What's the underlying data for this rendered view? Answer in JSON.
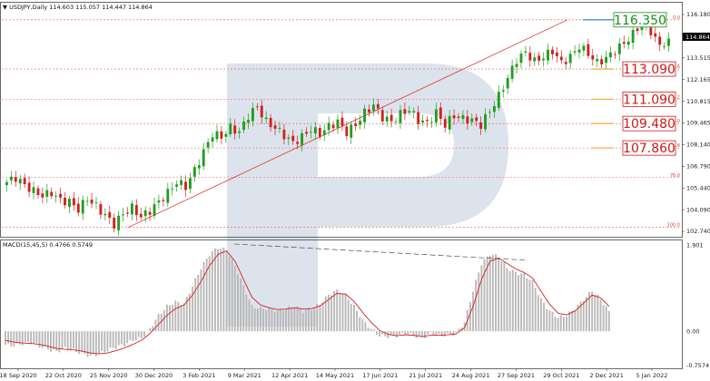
{
  "header": {
    "symbol_line": "▼ USDJPY,Daily  114.603 115.057 114.447 114.864",
    "macd_line": "MACD(15,45,5) 0.4766 0.5749"
  },
  "colors": {
    "up": "#1f9e1f",
    "down": "#d21f1f",
    "fib": "#e06060",
    "fib_label": "#cc2222",
    "target_green": "#1e8a1e",
    "target_red": "#cc1a1a",
    "histogram": "#b8b8b8",
    "signal": "#d62020",
    "watermark": "#dde3ec"
  },
  "chart_data": [
    {
      "type": "candlestick",
      "title": "USDJPY,Daily",
      "ylim": [
        102.1,
        117.3
      ],
      "y_ticks": [
        "116.180",
        "114.864",
        "113.515",
        "112.165",
        "110.815",
        "109.465",
        "108.140",
        "106.790",
        "105.440",
        "104.090",
        "102.740"
      ],
      "current_price": "114.864",
      "x_tick_labels": [
        "18 Sep 2020",
        "22 Oct 2020",
        "25 Nov 2020",
        "30 Dec 2020",
        "3 Feb 2021",
        "9 Mar 2021",
        "12 Apr 2021",
        "14 May 2021",
        "17 Jun 2021",
        "21 Jul 2021",
        "24 Aug 2021",
        "27 Sep 2021",
        "29 Oct 2021",
        "2 Dec 2021",
        "5 Jan 2022"
      ],
      "fibonacci": [
        {
          "label": "0.0",
          "price": 116.35
        },
        {
          "label": "23.6",
          "price": 113.09
        },
        {
          "label": "38.2",
          "price": 111.09
        },
        {
          "label": "50.0",
          "price": 109.48
        },
        {
          "label": "61.8",
          "price": 107.86
        },
        {
          "label": "76.0",
          "price": 105.9
        },
        {
          "label": "100.0",
          "price": 102.6
        }
      ],
      "targets": [
        {
          "text": "116.350",
          "price": 116.35,
          "color": "green"
        },
        {
          "text": "113.090",
          "price": 113.09,
          "color": "red"
        },
        {
          "text": "111.090",
          "price": 111.09,
          "color": "red"
        },
        {
          "text": "109.480",
          "price": 109.48,
          "color": "red"
        },
        {
          "text": "107.860",
          "price": 107.86,
          "color": "red"
        }
      ],
      "trendline": {
        "from": [
          0.186,
          102.6
        ],
        "to": [
          0.833,
          116.35
        ]
      },
      "close_path": [
        105.6,
        105.9,
        105.4,
        105.0,
        104.7,
        104.9,
        104.4,
        104.3,
        103.8,
        104.5,
        104.0,
        103.4,
        102.8,
        103.5,
        103.9,
        103.3,
        103.7,
        104.3,
        104.9,
        105.6,
        105.3,
        106.4,
        107.6,
        108.8,
        108.6,
        109.2,
        108.9,
        110.0,
        110.6,
        109.6,
        109.2,
        108.7,
        108.2,
        108.6,
        109.1,
        108.8,
        109.3,
        109.6,
        108.9,
        109.4,
        110.2,
        110.7,
        109.9,
        109.6,
        110.1,
        110.4,
        109.7,
        109.5,
        110.2,
        109.4,
        110.0,
        109.8,
        109.7,
        109.4,
        110.3,
        111.3,
        112.5,
        113.7,
        114.2,
        113.6,
        113.9,
        114.3,
        113.5,
        113.9,
        114.6,
        114.1,
        113.5,
        113.8,
        114.3,
        114.8,
        115.4,
        116.2,
        115.6,
        114.6,
        115.1
      ],
      "candles_per_segment": 2,
      "macd": {
        "ylim": [
          -0.78,
          1.95
        ],
        "y_ticks": [
          "1.901",
          "0.00",
          "-0.7574"
        ],
        "histogram": [
          -0.3,
          -0.32,
          -0.28,
          -0.25,
          -0.33,
          -0.4,
          -0.45,
          -0.38,
          -0.42,
          -0.5,
          -0.55,
          -0.5,
          -0.42,
          -0.35,
          -0.3,
          -0.2,
          -0.15,
          0.05,
          0.35,
          0.55,
          0.65,
          0.6,
          1.0,
          1.4,
          1.7,
          1.85,
          1.8,
          1.45,
          1.0,
          0.55,
          0.5,
          0.5,
          0.45,
          0.5,
          0.55,
          0.45,
          0.5,
          0.6,
          0.8,
          0.9,
          0.8,
          0.55,
          0.25,
          0.05,
          -0.1,
          -0.12,
          -0.1,
          -0.05,
          -0.1,
          -0.15,
          -0.05,
          -0.1,
          -0.08,
          -0.05,
          0.2,
          0.9,
          1.5,
          1.7,
          1.65,
          1.4,
          1.3,
          1.25,
          1.1,
          0.7,
          0.45,
          0.3,
          0.35,
          0.5,
          0.7,
          0.9,
          0.7,
          0.45
        ],
        "signal": [
          -0.2,
          -0.24,
          -0.26,
          -0.27,
          -0.29,
          -0.33,
          -0.38,
          -0.4,
          -0.41,
          -0.44,
          -0.48,
          -0.5,
          -0.48,
          -0.43,
          -0.37,
          -0.29,
          -0.2,
          -0.05,
          0.15,
          0.35,
          0.5,
          0.58,
          0.8,
          1.1,
          1.45,
          1.7,
          1.78,
          1.55,
          1.15,
          0.75,
          0.58,
          0.52,
          0.48,
          0.49,
          0.52,
          0.49,
          0.5,
          0.56,
          0.7,
          0.84,
          0.82,
          0.66,
          0.42,
          0.2,
          0.02,
          -0.07,
          -0.1,
          -0.08,
          -0.09,
          -0.12,
          -0.09,
          -0.09,
          -0.08,
          -0.06,
          0.08,
          0.55,
          1.15,
          1.55,
          1.62,
          1.5,
          1.38,
          1.3,
          1.18,
          0.88,
          0.6,
          0.4,
          0.36,
          0.45,
          0.62,
          0.8,
          0.74,
          0.55
        ],
        "divergence": {
          "from": [
            0.342,
            1.93
          ],
          "to": [
            0.775,
            1.57
          ]
        }
      }
    }
  ]
}
